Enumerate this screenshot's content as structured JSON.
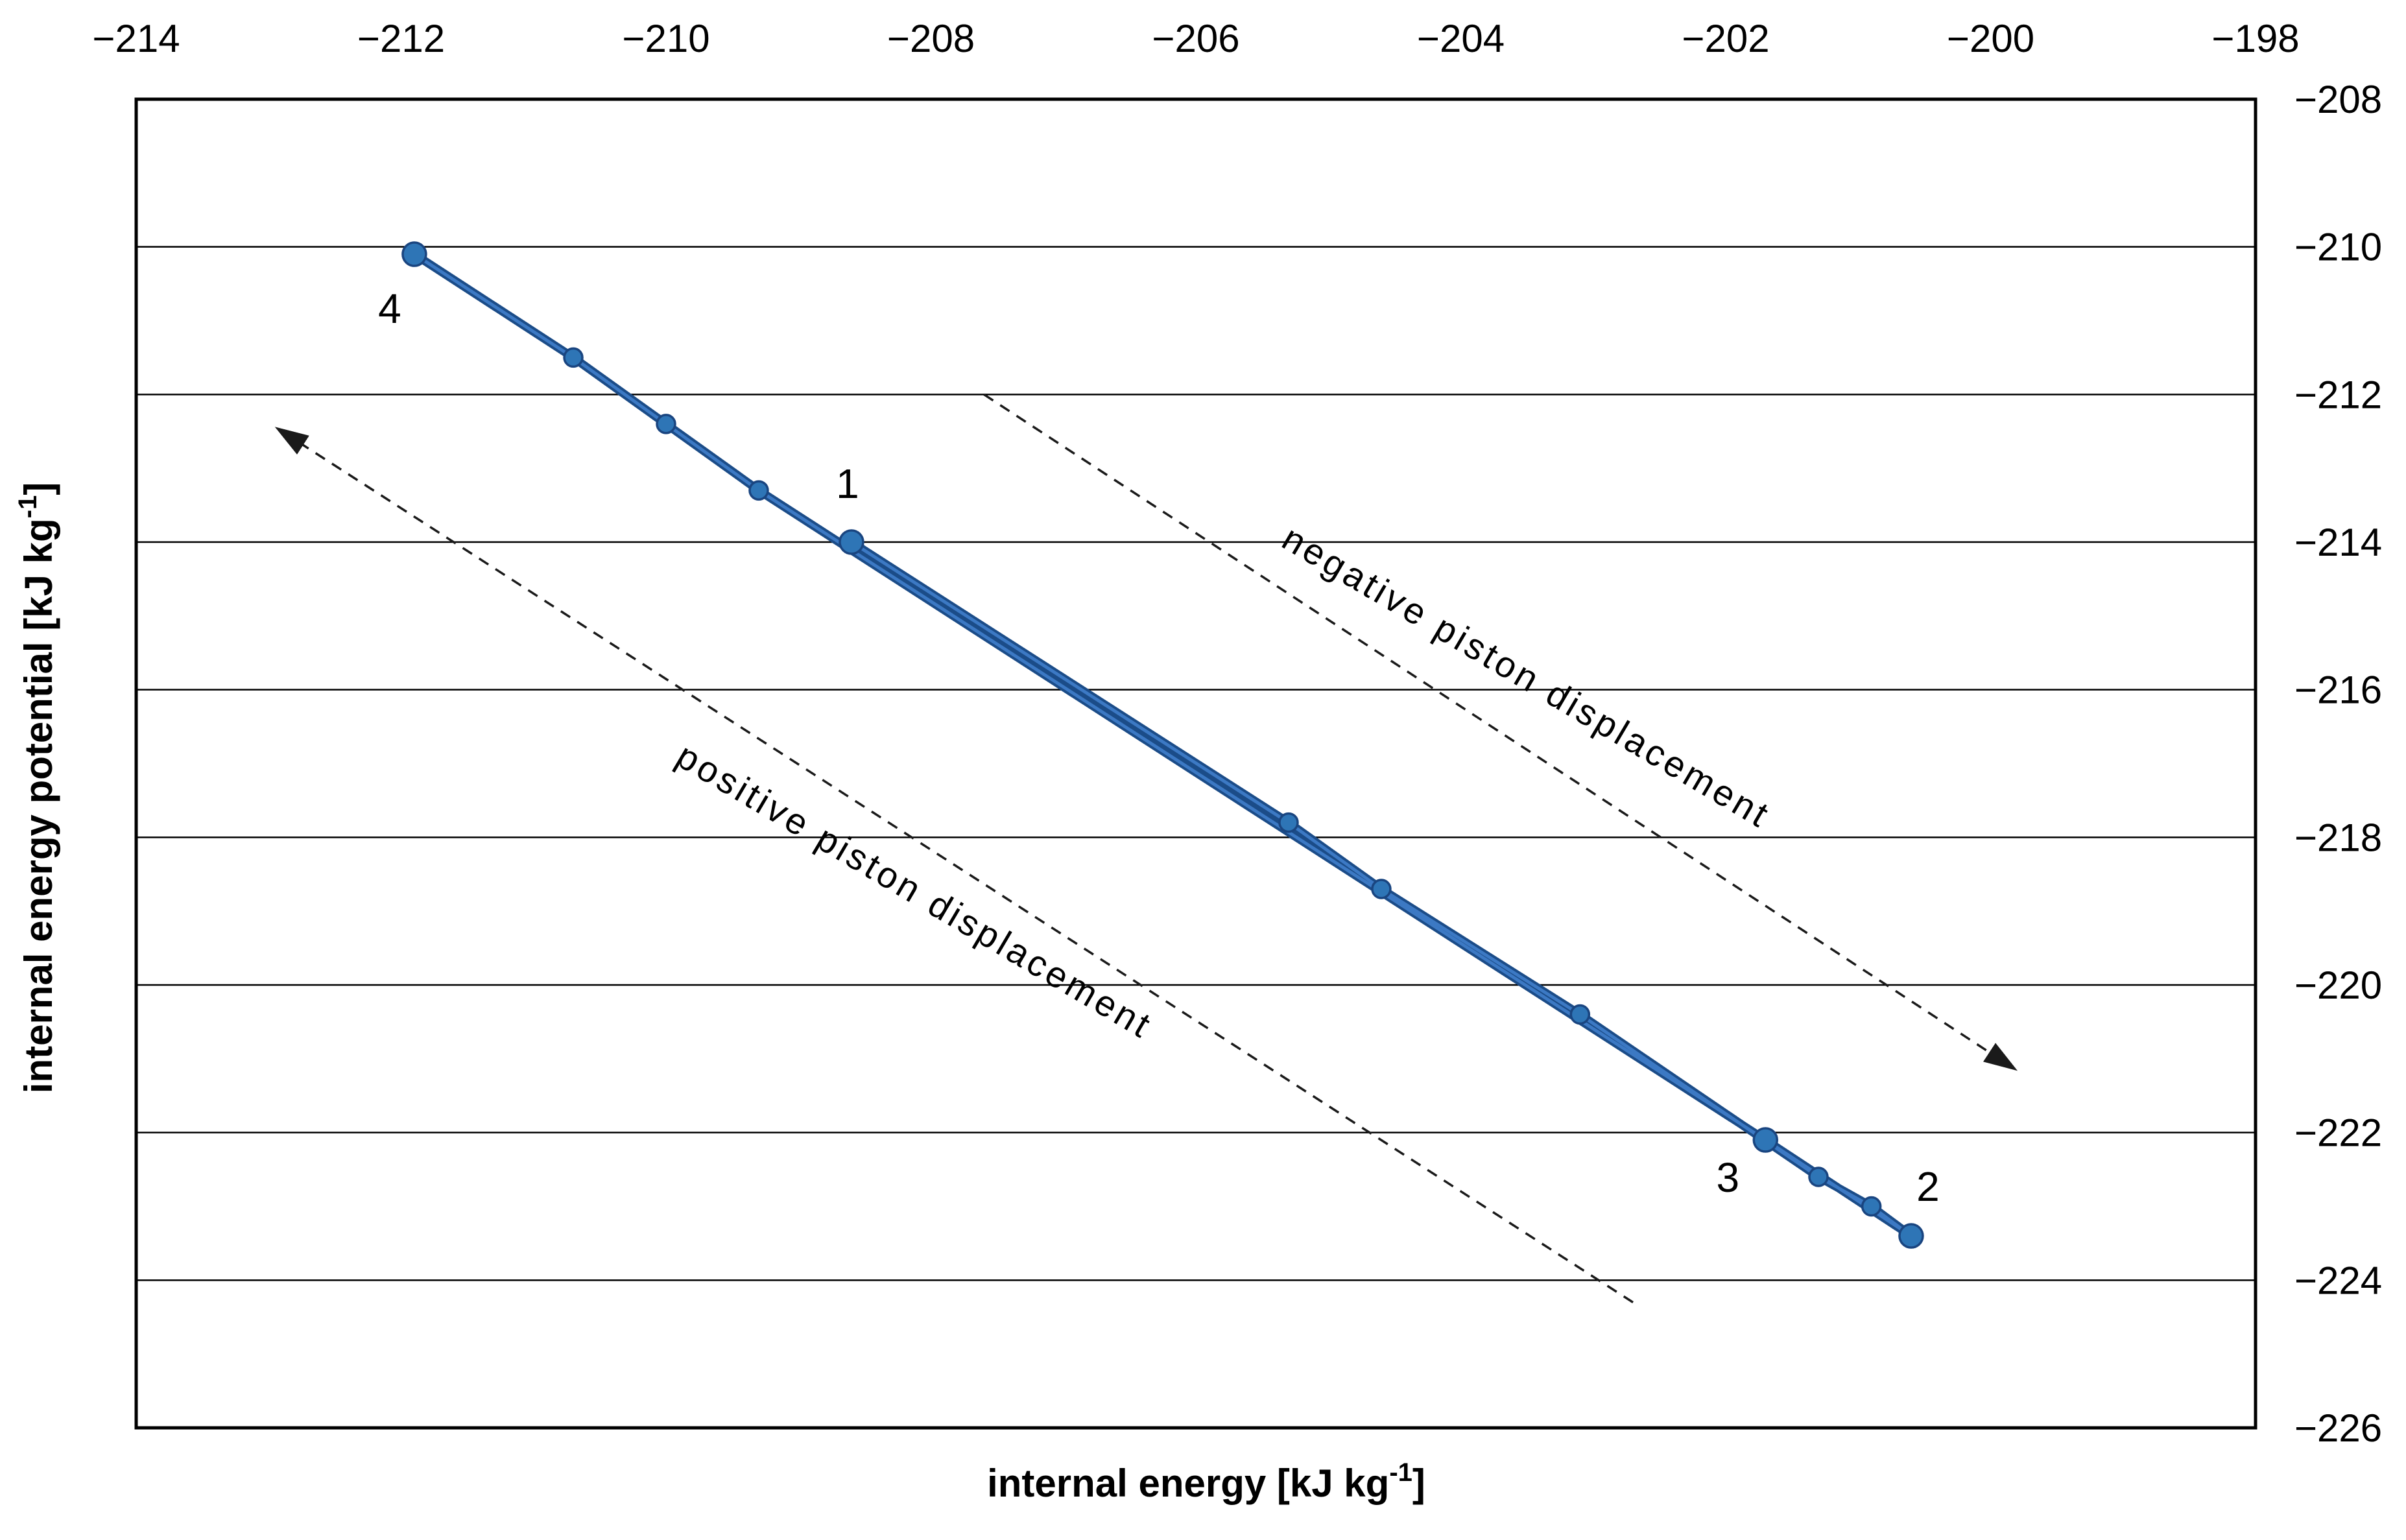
{
  "chart_data": {
    "type": "line",
    "title": "",
    "xlabel": {
      "pre": "internal energy [kJ kg",
      "sup": "-1",
      "post": "]"
    },
    "ylabel": {
      "pre": "internal energy potential [kJ kg",
      "sup": "-1",
      "post": "]"
    },
    "x_axis": {
      "side": "top",
      "min": -214,
      "max": -198,
      "tick_step": 2,
      "ticks": [
        -214,
        -212,
        -210,
        -208,
        -206,
        -204,
        -202,
        -200,
        -198
      ]
    },
    "y_axis": {
      "side": "right",
      "min": -226,
      "max": -208,
      "tick_step": 2,
      "ticks": [
        -208,
        -210,
        -212,
        -214,
        -216,
        -218,
        -220,
        -222,
        -224,
        -226
      ]
    },
    "grid": {
      "horizontal": true,
      "vertical": false
    },
    "legend": "none",
    "series": [
      {
        "name": "piston-cycle",
        "line_color": "#1B4C88",
        "line_highlight_color": "#3C79C4",
        "marker_color": "#2E75B6",
        "marker_edge_color": "#1A4580",
        "points": [
          {
            "x": -208.6,
            "y": -214.0,
            "label": "1",
            "label_dx": -6,
            "label_dy": -90
          },
          {
            "x": -205.3,
            "y": -217.8
          },
          {
            "x": -204.6,
            "y": -218.7
          },
          {
            "x": -203.1,
            "y": -220.4
          },
          {
            "x": -201.3,
            "y": -222.6
          },
          {
            "x": -200.9,
            "y": -223.0
          },
          {
            "x": -200.6,
            "y": -223.4,
            "label": "2",
            "label_dx": 26,
            "label_dy": -76
          },
          {
            "x": -201.7,
            "y": -222.1,
            "label": "3",
            "label_dx": -58,
            "label_dy": 58
          },
          {
            "x": -209.3,
            "y": -213.3
          },
          {
            "x": -210.0,
            "y": -212.4
          },
          {
            "x": -210.7,
            "y": -211.5
          },
          {
            "x": -211.9,
            "y": -210.1,
            "label": "4",
            "label_dx": -38,
            "label_dy": 84
          }
        ]
      }
    ],
    "arrows": [
      {
        "name": "negative-piston-displacement-arrow",
        "style": "dashed",
        "from": {
          "x": -207.6,
          "y": -212.0
        },
        "to": {
          "x": -199.85,
          "y": -221.1
        }
      },
      {
        "name": "positive-piston-displacement-arrow",
        "style": "dashed",
        "from": {
          "x": -202.7,
          "y": -224.3
        },
        "to": {
          "x": -212.9,
          "y": -212.5
        }
      }
    ],
    "annotations": [
      {
        "text": "negative piston displacement",
        "x": -203.55,
        "y": -215.97,
        "angle_deg": 30.5
      },
      {
        "text": "positive piston displacement",
        "x": -208.17,
        "y": -218.87,
        "angle_deg": 30.5
      }
    ],
    "colors": {
      "grid": "#000000",
      "border": "#000000",
      "arrow": "#1a1a1a",
      "accent_blue": "#2E75B6"
    }
  }
}
